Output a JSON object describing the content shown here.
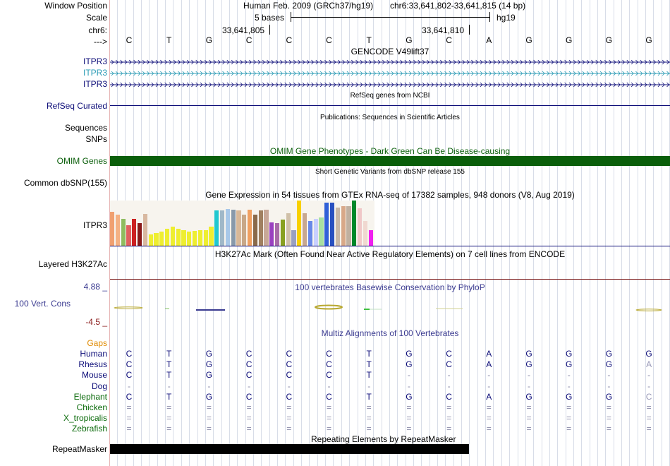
{
  "header": {
    "window_position_label": "Window Position",
    "assembly": "Human Feb. 2009 (GRCh37/hg19)",
    "position": "chr6:33,641,802-33,641,815 (14 bp)",
    "scale_label": "Scale",
    "scale_text": "5 bases",
    "scale_db": "hg19",
    "chrom_label": "chr6:",
    "coord1": "33,641,805",
    "coord2": "33,641,810",
    "strand_label": "--->"
  },
  "sequence": [
    "C",
    "T",
    "G",
    "C",
    "C",
    "C",
    "T",
    "G",
    "C",
    "A",
    "G",
    "G",
    "G",
    "G"
  ],
  "gencode": {
    "title": "GENCODE V49lift37",
    "rows": [
      {
        "label": "ITPR3",
        "color": "#0c0c78"
      },
      {
        "label": "ITPR3",
        "color": "#2a9bb5"
      },
      {
        "label": "ITPR3",
        "color": "#0c0c78"
      }
    ]
  },
  "refseq": {
    "title": "RefSeq genes from NCBI",
    "label": "RefSeq Curated",
    "color": "#0c0c78"
  },
  "publications": {
    "title": "Publications: Sequences in Scientific Articles",
    "labels": [
      "Sequences",
      "SNPs"
    ]
  },
  "omim": {
    "title": "OMIM Gene Phenotypes - Dark Green Can Be Disease-causing",
    "label": "OMIM Genes",
    "color": "#0a5e0a"
  },
  "dbsnp": {
    "title": "Short Genetic Variants from dbSNP release 155",
    "label": "Common dbSNP(155)"
  },
  "gtex": {
    "title": "Gene Expression in 54 tissues from GTEx RNA-seq of 17382 samples, 948 donors (V8, Aug 2019)",
    "label": "ITPR3",
    "bars": [
      {
        "v": 0.75,
        "c": "#f0a070"
      },
      {
        "v": 0.68,
        "c": "#f4b183"
      },
      {
        "v": 0.6,
        "c": "#8fbc5f"
      },
      {
        "v": 0.45,
        "c": "#e06060"
      },
      {
        "v": 0.6,
        "c": "#cc2020"
      },
      {
        "v": 0.5,
        "c": "#8a1a1a"
      },
      {
        "v": 0.7,
        "c": "#d8b8a0"
      },
      {
        "v": 0.25,
        "c": "#eeee30"
      },
      {
        "v": 0.28,
        "c": "#eeee30"
      },
      {
        "v": 0.32,
        "c": "#eeee30"
      },
      {
        "v": 0.38,
        "c": "#eeee30"
      },
      {
        "v": 0.42,
        "c": "#eeee30"
      },
      {
        "v": 0.38,
        "c": "#eeee30"
      },
      {
        "v": 0.35,
        "c": "#eeee30"
      },
      {
        "v": 0.32,
        "c": "#eeee30"
      },
      {
        "v": 0.33,
        "c": "#eeee30"
      },
      {
        "v": 0.35,
        "c": "#eeee30"
      },
      {
        "v": 0.35,
        "c": "#eeee30"
      },
      {
        "v": 0.42,
        "c": "#eeee30"
      },
      {
        "v": 0.78,
        "c": "#20c8d0"
      },
      {
        "v": 0.78,
        "c": "#a0b8c8"
      },
      {
        "v": 0.82,
        "c": "#a8c8e8"
      },
      {
        "v": 0.8,
        "c": "#8899aa"
      },
      {
        "v": 0.78,
        "c": "#d8b898"
      },
      {
        "v": 0.68,
        "c": "#c8a888"
      },
      {
        "v": 0.8,
        "c": "#f0a060"
      },
      {
        "v": 0.68,
        "c": "#8a6a4a"
      },
      {
        "v": 0.78,
        "c": "#a08060"
      },
      {
        "v": 0.8,
        "c": "#c8a898"
      },
      {
        "v": 0.52,
        "c": "#9a40c0"
      },
      {
        "v": 0.5,
        "c": "#a86aa8"
      },
      {
        "v": 0.58,
        "c": "#88a020"
      },
      {
        "v": 0.72,
        "c": "#d0c0a8"
      },
      {
        "v": 0.35,
        "c": "#9aa0c0"
      },
      {
        "v": 1.0,
        "c": "#f8d000"
      },
      {
        "v": 0.72,
        "c": "#c8a890"
      },
      {
        "v": 0.55,
        "c": "#6888e8"
      },
      {
        "v": 0.6,
        "c": "#c8d0ff"
      },
      {
        "v": 0.62,
        "c": "#a8e0a0"
      },
      {
        "v": 0.95,
        "c": "#3060d8"
      },
      {
        "v": 0.95,
        "c": "#2850c0"
      },
      {
        "v": 0.85,
        "c": "#c8b8a8"
      },
      {
        "v": 0.88,
        "c": "#d8a888"
      },
      {
        "v": 0.88,
        "c": "#c0b0a0"
      },
      {
        "v": 1.0,
        "c": "#00882a"
      },
      {
        "v": 0.83,
        "c": "#f0c8c8"
      },
      {
        "v": 0.55,
        "c": "#f0d8d0"
      },
      {
        "v": 0.35,
        "c": "#f020f0"
      }
    ]
  },
  "h3k27ac": {
    "title": "H3K27Ac Mark (Often Found Near Active Regulatory Elements) on 7 cell lines from ENCODE",
    "label": "Layered H3K27Ac"
  },
  "phylop": {
    "title": "100 vertebrates Basewise Conservation by PhyloP",
    "label": "100 Vert. Cons",
    "max": "4.88 _",
    "min": "-4.5 _"
  },
  "multiz": {
    "title": "Multiz Alignments of 100 Vertebrates",
    "gaps_label": "Gaps",
    "rows": [
      {
        "species": "Human",
        "color": "#0c0c78",
        "bases": [
          "C",
          "T",
          "G",
          "C",
          "C",
          "C",
          "T",
          "G",
          "C",
          "A",
          "G",
          "G",
          "G",
          "G"
        ]
      },
      {
        "species": "Rhesus",
        "color": "#0c0c78",
        "bases": [
          "C",
          "T",
          "G",
          "C",
          "C",
          "C",
          "T",
          "G",
          "C",
          "A",
          "G",
          "G",
          "G",
          "A"
        ]
      },
      {
        "species": "Mouse",
        "color": "#0c0c78",
        "bases": [
          "C",
          "T",
          "G",
          "C",
          "C",
          "C",
          "T",
          "-",
          "-",
          "-",
          "-",
          "-",
          "-",
          "-"
        ]
      },
      {
        "species": "Dog",
        "color": "#0c0c78",
        "bases": [
          "-",
          "-",
          "-",
          "-",
          "-",
          "-",
          "-",
          "-",
          "-",
          "-",
          "-",
          "-",
          "-",
          "-"
        ]
      },
      {
        "species": "Elephant",
        "color": "#0a6a0a",
        "bases": [
          "C",
          "T",
          "G",
          "C",
          "C",
          "C",
          "T",
          "G",
          "C",
          "A",
          "G",
          "G",
          "G",
          "C"
        ]
      },
      {
        "species": "Chicken",
        "color": "#0a6a0a",
        "bases": [
          "=",
          "=",
          "=",
          "=",
          "=",
          "=",
          "=",
          "=",
          "=",
          "=",
          "=",
          "=",
          "=",
          "="
        ]
      },
      {
        "species": "X_tropicalis",
        "color": "#0a6a0a",
        "bases": [
          "=",
          "=",
          "=",
          "=",
          "=",
          "=",
          "=",
          "=",
          "=",
          "=",
          "=",
          "=",
          "=",
          "="
        ]
      },
      {
        "species": "Zebrafish",
        "color": "#0a6a0a",
        "bases": [
          "=",
          "=",
          "=",
          "=",
          "=",
          "=",
          "=",
          "=",
          "=",
          "=",
          "=",
          "=",
          "=",
          "="
        ]
      }
    ]
  },
  "repeatmasker": {
    "title": "Repeating Elements by RepeatMasker",
    "label": "RepeatMasker"
  }
}
